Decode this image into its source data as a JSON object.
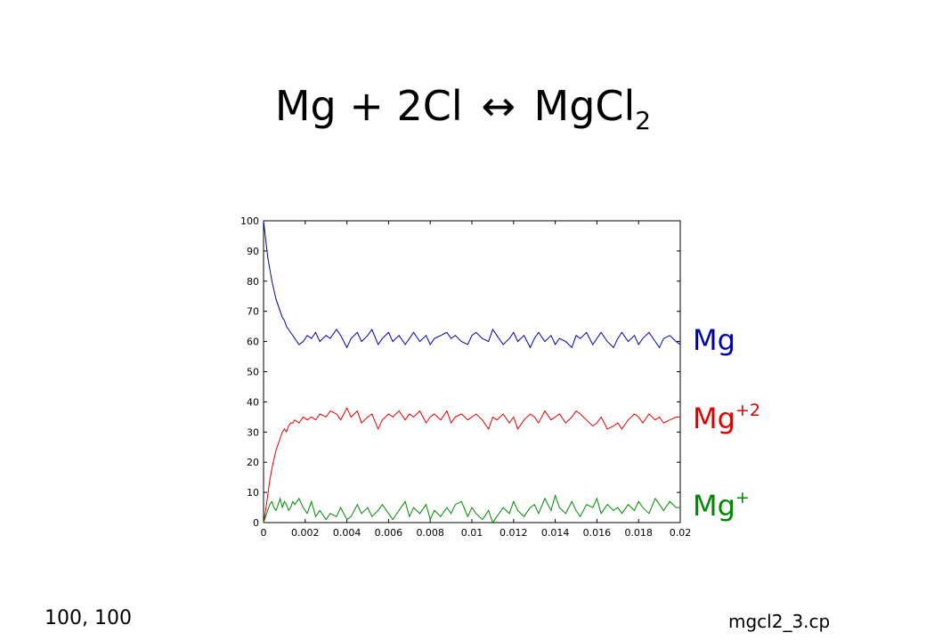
{
  "slide": {
    "title_main": "Mg + 2Cl",
    "title_arrow": "↔",
    "title_product": "MgCl",
    "title_sub": "2",
    "footer_left": "100, 100",
    "footer_right": "mgcl2_3.cp"
  },
  "legend": [
    {
      "base": "Mg",
      "sup": "",
      "color": "#0000aa"
    },
    {
      "base": "Mg",
      "sup": "+2",
      "color": "#dd0000"
    },
    {
      "base": "Mg",
      "sup": "+",
      "color": "#008800"
    }
  ],
  "chart_data": {
    "type": "line",
    "title": "",
    "xlabel": "",
    "ylabel": "",
    "xlim": [
      0,
      0.02
    ],
    "ylim": [
      0,
      100
    ],
    "xticks": [
      "0",
      "0.002",
      "0.004",
      "0.006",
      "0.008",
      "0.01",
      "0.012",
      "0.014",
      "0.016",
      "0.018",
      "0.02"
    ],
    "yticks": [
      "0",
      "10",
      "20",
      "30",
      "40",
      "50",
      "60",
      "70",
      "80",
      "90",
      "100"
    ],
    "grid": false,
    "series": [
      {
        "name": "Mg",
        "color": "#0000aa",
        "x": [
          0,
          0.0001,
          0.0002,
          0.0003,
          0.0004,
          0.0005,
          0.0006,
          0.0007,
          0.0008,
          0.0009,
          0.001,
          0.0011,
          0.0012,
          0.0013,
          0.0014,
          0.0015,
          0.0017,
          0.0019,
          0.0021,
          0.0023,
          0.0025,
          0.0027,
          0.003,
          0.0032,
          0.0035,
          0.0037,
          0.004,
          0.0042,
          0.0045,
          0.0047,
          0.005,
          0.0052,
          0.0055,
          0.0057,
          0.006,
          0.0062,
          0.0065,
          0.0068,
          0.007,
          0.0072,
          0.0075,
          0.0078,
          0.008,
          0.0082,
          0.0085,
          0.0088,
          0.009,
          0.0092,
          0.0095,
          0.0098,
          0.01,
          0.0102,
          0.0105,
          0.0108,
          0.011,
          0.0112,
          0.0115,
          0.0118,
          0.012,
          0.0122,
          0.0125,
          0.0128,
          0.013,
          0.0132,
          0.0135,
          0.0138,
          0.014,
          0.0142,
          0.0145,
          0.0148,
          0.015,
          0.0152,
          0.0155,
          0.0158,
          0.016,
          0.0162,
          0.0165,
          0.0168,
          0.017,
          0.0172,
          0.0175,
          0.0178,
          0.018,
          0.0182,
          0.0185,
          0.0188,
          0.019,
          0.0192,
          0.0195,
          0.0198,
          0.02
        ],
        "y": [
          100,
          94,
          88,
          84,
          80,
          77,
          74,
          72,
          70,
          68,
          67,
          65,
          64,
          63,
          62,
          61,
          59,
          60,
          62,
          61,
          63,
          60,
          62,
          61,
          64,
          62,
          58,
          61,
          63,
          60,
          62,
          64,
          59,
          61,
          63,
          60,
          62,
          59,
          61,
          63,
          60,
          62,
          59,
          61,
          62,
          63,
          61,
          62,
          60,
          59,
          62,
          63,
          61,
          60,
          64,
          62,
          59,
          61,
          63,
          60,
          62,
          58,
          61,
          63,
          60,
          62,
          59,
          61,
          60,
          58,
          62,
          61,
          63,
          59,
          61,
          63,
          60,
          58,
          61,
          63,
          60,
          62,
          59,
          61,
          63,
          60,
          58,
          61,
          62,
          60,
          59
        ]
      },
      {
        "name": "Mg+2",
        "color": "#dd0000",
        "x": [
          0,
          0.0001,
          0.0002,
          0.0003,
          0.0004,
          0.0005,
          0.0006,
          0.0007,
          0.0008,
          0.0009,
          0.001,
          0.0011,
          0.0012,
          0.0013,
          0.0014,
          0.0015,
          0.0017,
          0.0019,
          0.0021,
          0.0023,
          0.0025,
          0.0027,
          0.003,
          0.0032,
          0.0035,
          0.0037,
          0.004,
          0.0042,
          0.0045,
          0.0047,
          0.005,
          0.0052,
          0.0055,
          0.0057,
          0.006,
          0.0062,
          0.0065,
          0.0068,
          0.007,
          0.0072,
          0.0075,
          0.0078,
          0.008,
          0.0082,
          0.0085,
          0.0088,
          0.009,
          0.0092,
          0.0095,
          0.0098,
          0.01,
          0.0102,
          0.0105,
          0.0108,
          0.011,
          0.0112,
          0.0115,
          0.0118,
          0.012,
          0.0122,
          0.0125,
          0.0128,
          0.013,
          0.0132,
          0.0135,
          0.0138,
          0.014,
          0.0142,
          0.0145,
          0.0148,
          0.015,
          0.0152,
          0.0155,
          0.0158,
          0.016,
          0.0162,
          0.0165,
          0.0168,
          0.017,
          0.0172,
          0.0175,
          0.0178,
          0.018,
          0.0182,
          0.0185,
          0.0188,
          0.019,
          0.0192,
          0.0195,
          0.0198,
          0.02
        ],
        "y": [
          0,
          4,
          9,
          14,
          18,
          21,
          24,
          26,
          28,
          30,
          31,
          30,
          32,
          33,
          33,
          34,
          33,
          35,
          34,
          35,
          34,
          36,
          35,
          37,
          36,
          34,
          38,
          35,
          37,
          33,
          35,
          36,
          31,
          34,
          36,
          35,
          37,
          34,
          36,
          35,
          37,
          33,
          35,
          36,
          34,
          37,
          33,
          35,
          36,
          34,
          35,
          36,
          34,
          31,
          35,
          34,
          36,
          33,
          35,
          31,
          34,
          36,
          35,
          33,
          37,
          34,
          35,
          36,
          33,
          35,
          37,
          36,
          34,
          32,
          33,
          35,
          31,
          32,
          33,
          31,
          34,
          36,
          35,
          33,
          36,
          34,
          35,
          33,
          34,
          35,
          35
        ]
      },
      {
        "name": "Mg+",
        "color": "#008800",
        "x": [
          0,
          0.0001,
          0.0002,
          0.0003,
          0.0004,
          0.0005,
          0.0006,
          0.0007,
          0.0008,
          0.0009,
          0.001,
          0.0011,
          0.0012,
          0.0013,
          0.0014,
          0.0015,
          0.0017,
          0.0019,
          0.0021,
          0.0023,
          0.0025,
          0.0027,
          0.003,
          0.0032,
          0.0035,
          0.0037,
          0.004,
          0.0042,
          0.0045,
          0.0047,
          0.005,
          0.0052,
          0.0055,
          0.0057,
          0.006,
          0.0062,
          0.0065,
          0.0068,
          0.007,
          0.0072,
          0.0075,
          0.0078,
          0.008,
          0.0082,
          0.0085,
          0.0088,
          0.009,
          0.0092,
          0.0095,
          0.0098,
          0.01,
          0.0102,
          0.0105,
          0.0108,
          0.011,
          0.0112,
          0.0115,
          0.0118,
          0.012,
          0.0122,
          0.0125,
          0.0128,
          0.013,
          0.0132,
          0.0135,
          0.0138,
          0.014,
          0.0142,
          0.0145,
          0.0148,
          0.015,
          0.0152,
          0.0155,
          0.0158,
          0.016,
          0.0162,
          0.0165,
          0.0168,
          0.017,
          0.0172,
          0.0175,
          0.0178,
          0.018,
          0.0182,
          0.0185,
          0.0188,
          0.019,
          0.0192,
          0.0195,
          0.0198,
          0.02
        ],
        "y": [
          0,
          2,
          4,
          6,
          7,
          5,
          4,
          6,
          8,
          5,
          7,
          6,
          4,
          5,
          7,
          6,
          8,
          5,
          3,
          7,
          2,
          4,
          1,
          3,
          2,
          5,
          1,
          2,
          6,
          3,
          5,
          2,
          4,
          6,
          3,
          1,
          4,
          7,
          2,
          5,
          3,
          6,
          1,
          4,
          2,
          5,
          3,
          6,
          7,
          2,
          5,
          3,
          1,
          4,
          0,
          2,
          5,
          3,
          7,
          4,
          2,
          5,
          6,
          3,
          8,
          4,
          9,
          5,
          3,
          7,
          4,
          2,
          6,
          5,
          8,
          3,
          6,
          4,
          5,
          3,
          6,
          4,
          7,
          5,
          3,
          8,
          6,
          4,
          7,
          5,
          5
        ]
      }
    ]
  }
}
